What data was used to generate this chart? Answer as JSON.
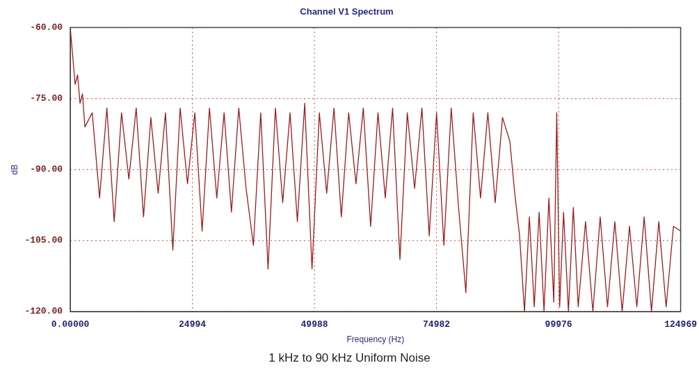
{
  "chart_data": {
    "type": "line",
    "title": "Channel V1 Spectrum",
    "xlabel": "Frequency (Hz)",
    "ylabel": "dB",
    "annotations": [
      "1 kHz to 90 kHz Uniform Noise"
    ],
    "xlim": [
      0,
      124969
    ],
    "xticks": [
      {
        "value": 0,
        "label": "0.00000"
      },
      24994,
      49988,
      74982,
      99976,
      124969
    ],
    "ylim": [
      -120,
      -60
    ],
    "yticks": [
      {
        "value": -60,
        "label": "-60.00"
      },
      {
        "value": -75,
        "label": "-75.00"
      },
      {
        "value": -90,
        "label": "-90.00"
      },
      {
        "value": -105,
        "label": "-105.00"
      },
      {
        "value": -120,
        "label": "-120.00"
      }
    ],
    "grid": true,
    "marker": "none",
    "line_style": "solid",
    "series": [
      {
        "color": "#9b1b1b",
        "x": [
          0,
          500,
          1000,
          1500,
          2000,
          2500,
          3000,
          4500,
          6000,
          7500,
          9000,
          10500,
          12000,
          13500,
          15000,
          16500,
          18000,
          19500,
          21000,
          22500,
          24000,
          25500,
          27000,
          28500,
          30000,
          31500,
          33000,
          34500,
          36000,
          37500,
          39000,
          40500,
          42000,
          43500,
          45000,
          46500,
          48000,
          49500,
          51000,
          52500,
          54000,
          55500,
          57000,
          58500,
          60000,
          61500,
          63000,
          64500,
          66000,
          67500,
          69000,
          70500,
          72000,
          73500,
          75000,
          76500,
          78000,
          79500,
          81000,
          82500,
          84000,
          85500,
          87000,
          88500,
          90000,
          91000,
          92000,
          93000,
          94000,
          95000,
          96000,
          97000,
          98000,
          99000,
          99600,
          100200,
          101000,
          102000,
          103000,
          104000,
          105500,
          107000,
          108500,
          110000,
          111500,
          113000,
          114500,
          116000,
          117500,
          119000,
          120500,
          122000,
          123500,
          124969
        ],
        "values": [
          -60,
          -66,
          -72,
          -70,
          -76,
          -74,
          -81,
          -78,
          -96,
          -77,
          -101,
          -78,
          -92,
          -77,
          -100,
          -79,
          -95,
          -78,
          -107,
          -77,
          -93,
          -78,
          -103,
          -77,
          -96,
          -78,
          -99,
          -77,
          -94,
          -106,
          -78,
          -111,
          -77,
          -97,
          -78,
          -101,
          -76,
          -111,
          -78,
          -95,
          -77,
          -100,
          -78,
          -93,
          -77,
          -102,
          -78,
          -96,
          -77,
          -109,
          -78,
          -94,
          -77,
          -104,
          -78,
          -106,
          -77,
          -98,
          -116,
          -78,
          -96,
          -78,
          -97,
          -79,
          -84,
          -95,
          -104,
          -120,
          -100,
          -119,
          -99,
          -120,
          -96,
          -118,
          -78,
          -119,
          -99,
          -120,
          -98,
          -119,
          -101,
          -120,
          -100,
          -119,
          -101,
          -120,
          -102,
          -119,
          -100,
          -120,
          -101,
          -119,
          -102,
          -103
        ]
      }
    ]
  }
}
